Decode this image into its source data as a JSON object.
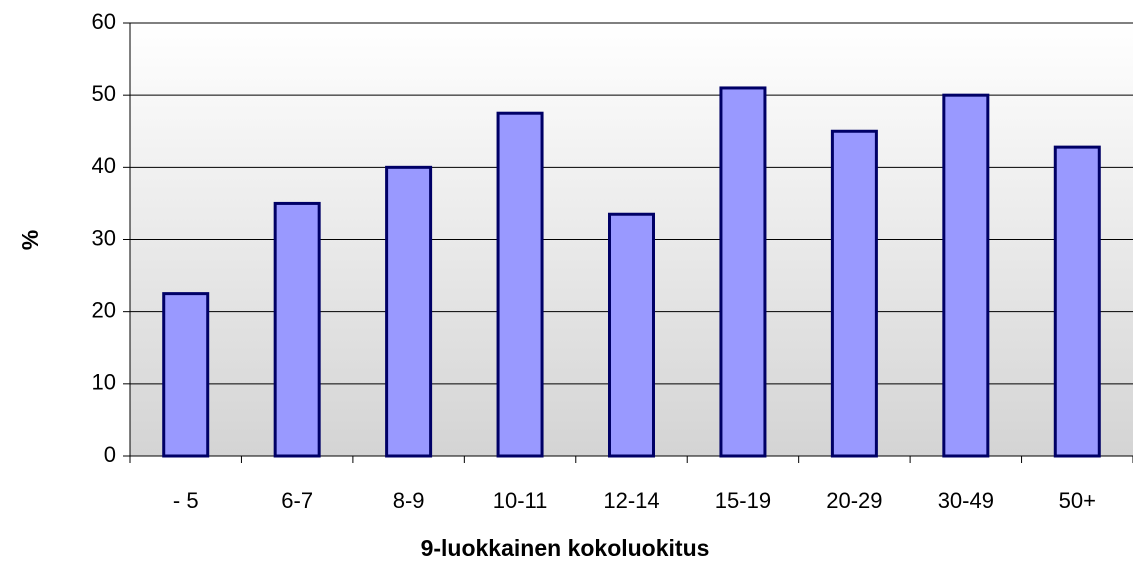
{
  "chart_data": {
    "type": "bar",
    "x_label": "9-luokkainen kokoluokitus",
    "y_label": "%",
    "categories": [
      "- 5",
      "6-7",
      "8-9",
      "10-11",
      "12-14",
      "15-19",
      "20-29",
      "30-49",
      "50+"
    ],
    "values": [
      22.5,
      35,
      40,
      47.5,
      33.5,
      51,
      45,
      50,
      42.8
    ],
    "color": "#9999ff",
    "ylim": [
      0,
      60
    ],
    "yticks": [
      0,
      10,
      20,
      30,
      40,
      50,
      60
    ],
    "grid": true
  }
}
